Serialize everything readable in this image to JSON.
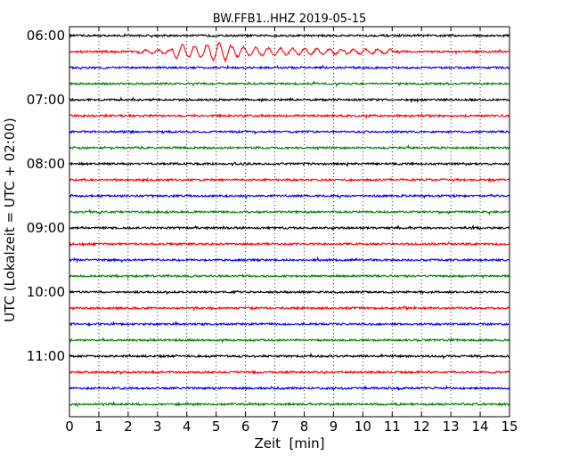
{
  "chart_data": {
    "type": "line",
    "title": "BW.FFB1..HHZ 2019-05-15",
    "xlabel": "Zeit  [min]",
    "ylabel": "UTC (Lokalzeit = UTC + 02:00)",
    "xlim": [
      0,
      15
    ],
    "x_ticks": [
      "0",
      "1",
      "2",
      "3",
      "4",
      "5",
      "6",
      "7",
      "8",
      "9",
      "10",
      "11",
      "12",
      "13",
      "14",
      "15"
    ],
    "y_ticks": [
      "06:00",
      "07:00",
      "08:00",
      "09:00",
      "10:00",
      "11:00"
    ],
    "grid": "vertical dotted",
    "trace_colors": [
      "#000000",
      "#ff0000",
      "#0000ff",
      "#008000"
    ],
    "traces": [
      {
        "start": "06:00",
        "color": "#000000"
      },
      {
        "start": "06:15",
        "color": "#ff0000",
        "event": {
          "onset_min": 2.2,
          "peak_min": 5.1,
          "end_min": 11.0
        }
      },
      {
        "start": "06:30",
        "color": "#0000ff"
      },
      {
        "start": "06:45",
        "color": "#008000"
      },
      {
        "start": "07:00",
        "color": "#000000"
      },
      {
        "start": "07:15",
        "color": "#ff0000"
      },
      {
        "start": "07:30",
        "color": "#0000ff"
      },
      {
        "start": "07:45",
        "color": "#008000"
      },
      {
        "start": "08:00",
        "color": "#000000"
      },
      {
        "start": "08:15",
        "color": "#ff0000"
      },
      {
        "start": "08:30",
        "color": "#0000ff"
      },
      {
        "start": "08:45",
        "color": "#008000"
      },
      {
        "start": "09:00",
        "color": "#000000"
      },
      {
        "start": "09:15",
        "color": "#ff0000"
      },
      {
        "start": "09:30",
        "color": "#0000ff"
      },
      {
        "start": "09:45",
        "color": "#008000"
      },
      {
        "start": "10:00",
        "color": "#000000"
      },
      {
        "start": "10:15",
        "color": "#ff0000"
      },
      {
        "start": "10:30",
        "color": "#0000ff"
      },
      {
        "start": "10:45",
        "color": "#008000"
      },
      {
        "start": "11:00",
        "color": "#000000"
      },
      {
        "start": "11:15",
        "color": "#ff0000"
      },
      {
        "start": "11:30",
        "color": "#0000ff"
      },
      {
        "start": "11:45",
        "color": "#008000"
      }
    ]
  }
}
